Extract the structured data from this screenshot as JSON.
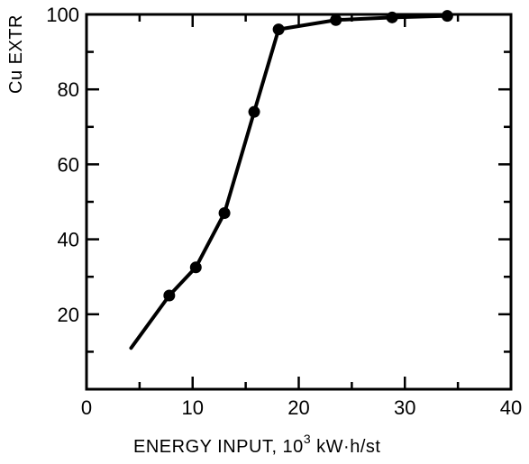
{
  "chart_data": {
    "type": "line",
    "title": "",
    "xlabel": "ENERGY INPUT, 10³ kW·h/st",
    "xlabel_parts": {
      "main": "ENERGY INPUT,  10",
      "superscript": "3",
      "unit": " kW·h/st"
    },
    "ylabel": "Cu EXTR",
    "xlim": [
      0,
      40
    ],
    "ylim": [
      0,
      100
    ],
    "xticks": [
      0,
      10,
      20,
      30,
      40
    ],
    "xtick_labels": [
      "0",
      "10",
      "20",
      "30",
      "40"
    ],
    "yticks": [
      20,
      40,
      60,
      80,
      100
    ],
    "ytick_labels": [
      "20",
      "40",
      "60",
      "80",
      "100"
    ],
    "grid": false,
    "series": [
      {
        "x": [
          4.2,
          7.8,
          10.3,
          13.0,
          15.8,
          18.1,
          23.5,
          28.8,
          34.0
        ],
        "y": [
          11,
          25,
          32.5,
          47,
          74,
          96,
          98.5,
          99.2,
          99.6
        ],
        "markers": [
          false,
          true,
          true,
          true,
          true,
          true,
          true,
          true,
          true
        ]
      }
    ],
    "color": "#000000"
  }
}
